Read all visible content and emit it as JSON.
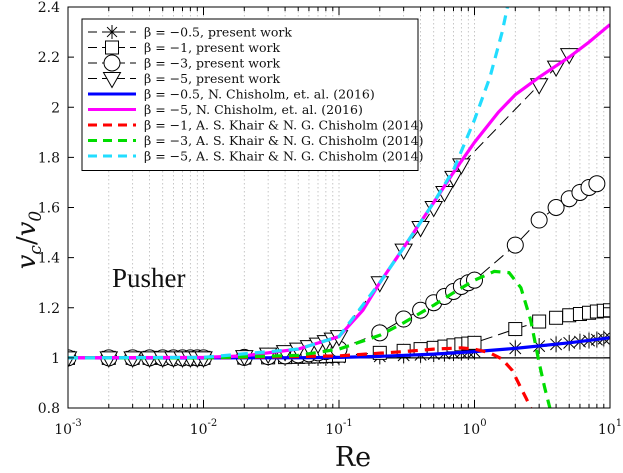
{
  "chart_data": {
    "type": "line",
    "xscale": "log",
    "xlim": [
      0.001,
      10
    ],
    "ylim": [
      0.8,
      2.4
    ],
    "xlabel": "Re",
    "ylabel": "v_c/v_0",
    "ylabel_parts": {
      "v1": "v",
      "s1": "c",
      "slash": "/",
      "v2": "v",
      "s2": "0"
    },
    "x_tick_labels": [
      {
        "base": "10",
        "exp": "-3"
      },
      {
        "base": "10",
        "exp": "-2"
      },
      {
        "base": "10",
        "exp": "-1"
      },
      {
        "base": "10",
        "exp": "0"
      },
      {
        "base": "10",
        "exp": "1"
      }
    ],
    "y_ticks": [
      0.8,
      1.0,
      1.2,
      1.4,
      1.6,
      1.8,
      2.0,
      2.2,
      2.4
    ],
    "y_tick_labels": [
      "0.8",
      "1",
      "1.2",
      "1.4",
      "1.6",
      "1.8",
      "2",
      "2.2",
      "2.4"
    ],
    "annotation": "Pusher",
    "reference_line_y": 1.0,
    "grid": "x-minor dotted",
    "legend_position": "top-left",
    "series": [
      {
        "name": "β = −0.5, present work",
        "style": "marker",
        "marker": "asterisk",
        "color": "#000000",
        "x": [
          0.001,
          0.002,
          0.003,
          0.004,
          0.005,
          0.006,
          0.007,
          0.008,
          0.009,
          0.01,
          0.02,
          0.03,
          0.04,
          0.05,
          0.06,
          0.07,
          0.08,
          0.09,
          0.1,
          0.2,
          0.3,
          0.4,
          0.5,
          0.6,
          0.7,
          0.8,
          0.9,
          1,
          2,
          3,
          4,
          5,
          6,
          7,
          8,
          9,
          10
        ],
        "y": [
          1,
          1,
          1,
          1,
          1,
          1,
          1,
          1,
          1,
          1,
          1,
          1,
          1,
          1,
          1,
          1,
          1,
          1,
          1.002,
          1.006,
          1.01,
          1.012,
          1.015,
          1.017,
          1.019,
          1.021,
          1.023,
          1.025,
          1.038,
          1.047,
          1.054,
          1.06,
          1.065,
          1.069,
          1.073,
          1.077,
          1.08
        ]
      },
      {
        "name": "β = −1, present work",
        "style": "marker",
        "marker": "square",
        "color": "#000000",
        "x": [
          0.001,
          0.002,
          0.003,
          0.004,
          0.005,
          0.006,
          0.007,
          0.008,
          0.009,
          0.01,
          0.02,
          0.03,
          0.04,
          0.05,
          0.06,
          0.07,
          0.08,
          0.09,
          0.1,
          0.2,
          0.3,
          0.4,
          0.5,
          0.6,
          0.7,
          0.8,
          0.9,
          1,
          2,
          3,
          4,
          5,
          6,
          7,
          8,
          9,
          10
        ],
        "y": [
          1,
          1,
          1,
          1,
          1,
          1,
          1,
          1,
          1,
          1,
          1.001,
          1.002,
          1.003,
          1.004,
          1.005,
          1.006,
          1.007,
          1.008,
          1.009,
          1.02,
          1.028,
          1.035,
          1.04,
          1.045,
          1.05,
          1.054,
          1.057,
          1.06,
          1.115,
          1.145,
          1.16,
          1.17,
          1.175,
          1.18,
          1.185,
          1.188,
          1.19
        ]
      },
      {
        "name": "β = −3, present work",
        "style": "marker",
        "marker": "circle",
        "color": "#000000",
        "x": [
          0.001,
          0.002,
          0.003,
          0.004,
          0.005,
          0.006,
          0.007,
          0.008,
          0.009,
          0.01,
          0.02,
          0.03,
          0.04,
          0.05,
          0.06,
          0.07,
          0.08,
          0.09,
          0.1,
          0.2,
          0.3,
          0.4,
          0.5,
          0.6,
          0.7,
          0.8,
          0.9,
          1,
          2,
          3,
          4,
          5,
          6,
          7,
          8
        ],
        "y": [
          1,
          1,
          1,
          1,
          1,
          1,
          1,
          1,
          1,
          1,
          1.002,
          1.005,
          1.008,
          1.012,
          1.016,
          1.02,
          1.025,
          1.03,
          1.035,
          1.1,
          1.155,
          1.19,
          1.22,
          1.245,
          1.265,
          1.285,
          1.3,
          1.31,
          1.45,
          1.55,
          1.6,
          1.635,
          1.66,
          1.68,
          1.695
        ]
      },
      {
        "name": "β = −5, present work",
        "style": "marker",
        "marker": "triangle-down",
        "color": "#000000",
        "x": [
          0.001,
          0.002,
          0.003,
          0.004,
          0.005,
          0.006,
          0.007,
          0.008,
          0.009,
          0.01,
          0.02,
          0.03,
          0.04,
          0.05,
          0.06,
          0.07,
          0.08,
          0.09,
          0.1,
          0.2,
          0.3,
          0.4,
          0.5,
          0.6,
          0.7,
          0.8,
          3,
          4,
          5
        ],
        "y": [
          1,
          1,
          1,
          1,
          1,
          1,
          1,
          1,
          1,
          1,
          1.005,
          1.015,
          1.025,
          1.035,
          1.045,
          1.055,
          1.065,
          1.075,
          1.085,
          1.3,
          1.43,
          1.52,
          1.6,
          1.66,
          1.72,
          1.77,
          2.09,
          2.16,
          2.21
        ]
      },
      {
        "name": "β = −0.5, N. Chisholm, et. al. (2016)",
        "style": "line",
        "color": "#0000ff",
        "width": 3.2,
        "x": [
          0.001,
          0.01,
          0.05,
          0.1,
          0.2,
          0.5,
          1,
          2,
          5,
          10
        ],
        "y": [
          1,
          1,
          1.0005,
          1.002,
          1.006,
          1.015,
          1.025,
          1.038,
          1.06,
          1.08
        ]
      },
      {
        "name": "β = −5, N. Chisholm, et. al. (2016)",
        "style": "line",
        "color": "#ff00ff",
        "width": 3.2,
        "x": [
          0.001,
          0.01,
          0.02,
          0.05,
          0.1,
          0.15,
          0.2,
          0.3,
          0.5,
          0.7,
          1,
          1.5,
          2,
          3,
          5,
          7,
          10
        ],
        "y": [
          1,
          1.002,
          1.008,
          1.035,
          1.085,
          1.19,
          1.3,
          1.44,
          1.62,
          1.74,
          1.86,
          1.98,
          2.05,
          2.12,
          2.2,
          2.26,
          2.33
        ]
      },
      {
        "name": "β = −1, A. S. Khair & N. G. Chisholm (2014)",
        "style": "dashed",
        "color": "#ff0000",
        "width": 3.2,
        "x": [
          0.001,
          0.01,
          0.1,
          0.3,
          0.5,
          0.8,
          1.0,
          1.3,
          1.6,
          1.9,
          2.2,
          2.4,
          2.6
        ],
        "y": [
          1,
          1,
          1.008,
          1.025,
          1.035,
          1.04,
          1.035,
          1.02,
          0.995,
          0.95,
          0.88,
          0.84,
          0.8
        ]
      },
      {
        "name": "β = −3, A. S. Khair & N. G. Chisholm (2014)",
        "style": "dashed",
        "color": "#00dd00",
        "width": 3.2,
        "x": [
          0.001,
          0.01,
          0.05,
          0.1,
          0.2,
          0.3,
          0.5,
          0.7,
          1.0,
          1.4,
          1.8,
          2.2,
          2.6,
          3.0,
          3.3,
          3.6
        ],
        "y": [
          1,
          1,
          1.01,
          1.035,
          1.09,
          1.14,
          1.21,
          1.26,
          1.31,
          1.345,
          1.34,
          1.28,
          1.15,
          0.98,
          0.88,
          0.8
        ]
      },
      {
        "name": "β = −5, A. S. Khair & N. G. Chisholm (2014)",
        "style": "dashed",
        "color": "#22ddff",
        "width": 3.2,
        "x": [
          0.001,
          0.01,
          0.05,
          0.1,
          0.2,
          0.3,
          0.5,
          0.7,
          1.0,
          1.3,
          1.6,
          1.75
        ],
        "y": [
          1,
          1.002,
          1.035,
          1.085,
          1.3,
          1.44,
          1.62,
          1.75,
          1.95,
          2.12,
          2.3,
          2.4
        ]
      }
    ]
  }
}
